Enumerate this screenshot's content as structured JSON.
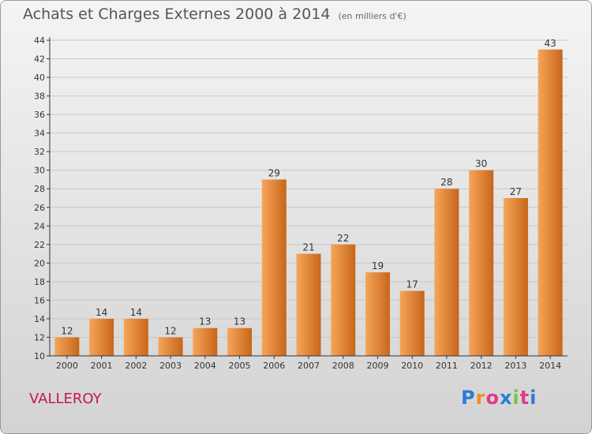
{
  "title": "Achats et Charges Externes 2000 à 2014",
  "subtitle": "(en milliers d'€)",
  "town": "VALLEROY",
  "logo": {
    "letters": [
      "P",
      "r",
      "o",
      "x",
      "i",
      "t",
      "i"
    ],
    "colors": [
      "#2e7bd6",
      "#f28c1e",
      "#e03b8b",
      "#2e7bd6",
      "#7cc243",
      "#e03b8b",
      "#2e7bd6"
    ]
  },
  "colors": {
    "bar_light": "#f6a55a",
    "bar_dark": "#c8661a",
    "axis": "#333333",
    "grid": "#c8c8c8"
  },
  "chart_data": {
    "type": "bar",
    "categories": [
      "2000",
      "2001",
      "2002",
      "2003",
      "2004",
      "2005",
      "2006",
      "2007",
      "2008",
      "2009",
      "2010",
      "2011",
      "2012",
      "2013",
      "2014"
    ],
    "values": [
      12,
      14,
      14,
      12,
      13,
      13,
      29,
      21,
      22,
      19,
      17,
      28,
      30,
      27,
      43
    ],
    "ylim": [
      10,
      44
    ],
    "yticks": [
      10,
      12,
      14,
      16,
      18,
      20,
      22,
      24,
      26,
      28,
      30,
      32,
      34,
      36,
      38,
      40,
      42,
      44
    ],
    "grid": true,
    "data_labels": true
  }
}
